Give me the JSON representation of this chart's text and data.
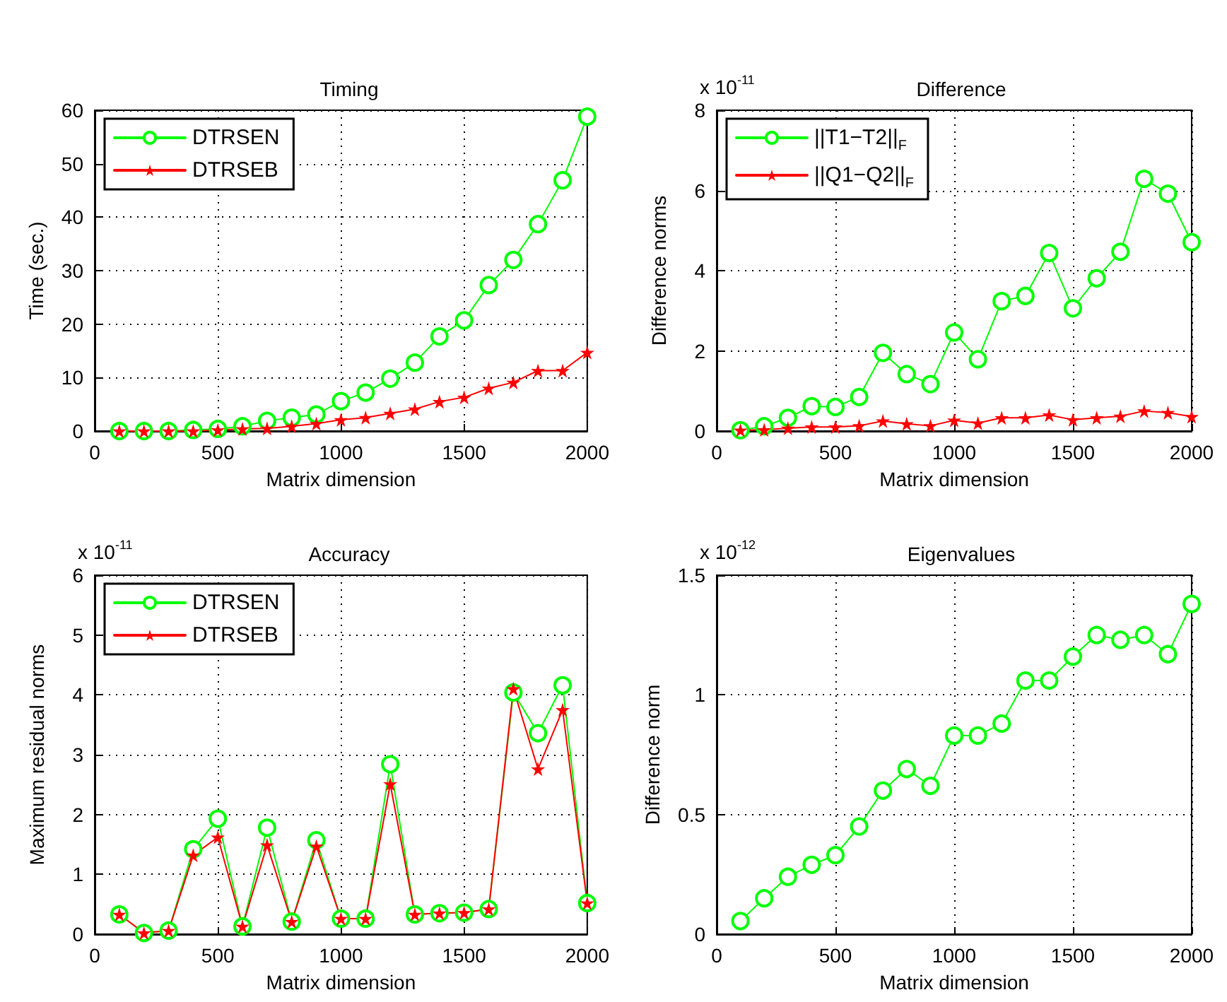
{
  "chart_data": [
    {
      "type": "line",
      "title": "Timing",
      "xlabel": "Matrix dimension",
      "ylabel": "Time (sec.)",
      "x": [
        100,
        200,
        300,
        400,
        500,
        600,
        700,
        800,
        900,
        1000,
        1100,
        1200,
        1300,
        1400,
        1500,
        1600,
        1700,
        1800,
        1900,
        2000
      ],
      "xlim": [
        0,
        2000
      ],
      "xticks": [
        0,
        500,
        1000,
        1500,
        2000
      ],
      "ylim": [
        0,
        60
      ],
      "yticks": [
        0,
        10,
        20,
        30,
        40,
        50,
        60
      ],
      "grid": true,
      "legend": "top left",
      "series": [
        {
          "name": "DTRSEN",
          "color": "#00ff00",
          "marker": "circle",
          "values": [
            0,
            0,
            0,
            0.2,
            0.4,
            0.9,
            1.9,
            2.5,
            3.1,
            5.6,
            7.2,
            9.8,
            12.8,
            17.7,
            20.7,
            27.3,
            32,
            38.7,
            46.9,
            58.8
          ]
        },
        {
          "name": "DTRSEB",
          "color": "#ff0000",
          "marker": "star",
          "values": [
            0,
            0,
            0,
            0,
            0.2,
            0.4,
            0.5,
            0.9,
            1.4,
            2.1,
            2.5,
            3.3,
            4.1,
            5.5,
            6.3,
            8,
            9.1,
            11.3,
            11.3,
            14.7
          ]
        }
      ]
    },
    {
      "type": "line",
      "title": "Difference",
      "xlabel": "Matrix dimension",
      "ylabel": "Difference norms",
      "annotations": [
        "x 10$^{-11}$"
      ],
      "x": [
        100,
        200,
        300,
        400,
        500,
        600,
        700,
        800,
        900,
        1000,
        1100,
        1200,
        1300,
        1400,
        1500,
        1600,
        1700,
        1800,
        1900,
        2000
      ],
      "xlim": [
        0,
        2000
      ],
      "xticks": [
        0,
        500,
        1000,
        1500,
        2000
      ],
      "ylim": [
        0,
        8
      ],
      "yticks": [
        0,
        2,
        4,
        6,
        8
      ],
      "grid": true,
      "legend": "top left",
      "series": [
        {
          "name": "||T1−T2||$_{F}$",
          "color": "#00ff00",
          "marker": "circle",
          "values": [
            0.02,
            0.12,
            0.33,
            0.62,
            0.6,
            0.85,
            1.95,
            1.42,
            1.17,
            2.46,
            1.79,
            3.24,
            3.37,
            4.44,
            3.06,
            3.81,
            4.47,
            6.29,
            5.92,
            4.71
          ]
        },
        {
          "name": "||Q1−Q2||$_{F}$",
          "color": "#ff0000",
          "marker": "star",
          "values": [
            0.02,
            0.03,
            0.07,
            0.1,
            0.1,
            0.13,
            0.25,
            0.18,
            0.13,
            0.27,
            0.2,
            0.33,
            0.33,
            0.4,
            0.28,
            0.33,
            0.37,
            0.5,
            0.46,
            0.36
          ]
        }
      ]
    },
    {
      "type": "line",
      "title": "Accuracy",
      "xlabel": "Matrix dimension",
      "ylabel": "Maximum residual norms",
      "annotations": [
        "x 10$^{-11}$"
      ],
      "x": [
        100,
        200,
        300,
        400,
        500,
        600,
        700,
        800,
        900,
        1000,
        1100,
        1200,
        1300,
        1400,
        1500,
        1600,
        1700,
        1800,
        1900,
        2000
      ],
      "xlim": [
        0,
        2000
      ],
      "xticks": [
        0,
        500,
        1000,
        1500,
        2000
      ],
      "ylim": [
        0,
        6
      ],
      "yticks": [
        0,
        1,
        2,
        3,
        4,
        5,
        6
      ],
      "grid": true,
      "legend": "top left",
      "series": [
        {
          "name": "DTRSEN",
          "color": "#00ff00",
          "marker": "circle",
          "values": [
            0.33,
            0.02,
            0.06,
            1.42,
            1.93,
            0.13,
            1.78,
            0.21,
            1.57,
            0.26,
            0.26,
            2.84,
            0.33,
            0.35,
            0.36,
            0.42,
            4.04,
            3.36,
            4.16,
            0.52
          ]
        },
        {
          "name": "DTRSEB",
          "color": "#ff0000",
          "marker": "star",
          "values": [
            0.33,
            0.02,
            0.06,
            1.32,
            1.62,
            0.13,
            1.49,
            0.21,
            1.47,
            0.26,
            0.26,
            2.51,
            0.33,
            0.35,
            0.36,
            0.42,
            4.1,
            2.76,
            3.75,
            0.52
          ]
        }
      ]
    },
    {
      "type": "line",
      "title": "Eigenvalues",
      "xlabel": "Matrix dimension",
      "ylabel": "Difference norm",
      "annotations": [
        "x 10$^{-12}$"
      ],
      "x": [
        100,
        200,
        300,
        400,
        500,
        600,
        700,
        800,
        900,
        1000,
        1100,
        1200,
        1300,
        1400,
        1500,
        1600,
        1700,
        1800,
        1900,
        2000
      ],
      "xlim": [
        0,
        2000
      ],
      "xticks": [
        0,
        500,
        1000,
        1500,
        2000
      ],
      "ylim": [
        0,
        1.5
      ],
      "yticks": [
        0,
        0.5,
        1,
        1.5
      ],
      "grid": true,
      "series": [
        {
          "color": "#00ff00",
          "marker": "circle",
          "values": [
            0.055,
            0.15,
            0.24,
            0.29,
            0.33,
            0.45,
            0.6,
            0.69,
            0.62,
            0.83,
            0.83,
            0.88,
            1.06,
            1.06,
            1.16,
            1.25,
            1.23,
            1.25,
            1.17,
            1.38
          ]
        }
      ]
    }
  ]
}
